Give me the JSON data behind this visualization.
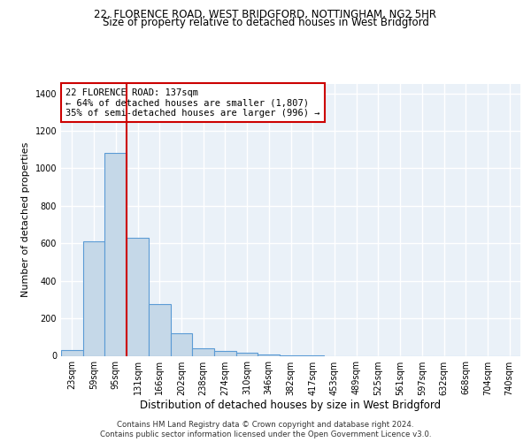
{
  "title_line1": "22, FLORENCE ROAD, WEST BRIDGFORD, NOTTINGHAM, NG2 5HR",
  "title_line2": "Size of property relative to detached houses in West Bridgford",
  "xlabel": "Distribution of detached houses by size in West Bridgford",
  "ylabel": "Number of detached properties",
  "categories": [
    "23sqm",
    "59sqm",
    "95sqm",
    "131sqm",
    "166sqm",
    "202sqm",
    "238sqm",
    "274sqm",
    "310sqm",
    "346sqm",
    "382sqm",
    "417sqm",
    "453sqm",
    "489sqm",
    "525sqm",
    "561sqm",
    "597sqm",
    "632sqm",
    "668sqm",
    "704sqm",
    "740sqm"
  ],
  "values": [
    30,
    610,
    1080,
    630,
    275,
    120,
    40,
    25,
    15,
    5,
    3,
    1,
    0,
    0,
    0,
    0,
    0,
    0,
    0,
    0,
    0
  ],
  "bar_color": "#c5d8e8",
  "bar_edge_color": "#5b9bd5",
  "vline_x_index": 2.5,
  "vline_color": "#cc0000",
  "annotation_text": "22 FLORENCE ROAD: 137sqm\n← 64% of detached houses are smaller (1,807)\n35% of semi-detached houses are larger (996) →",
  "annotation_box_color": "white",
  "annotation_box_edge": "#cc0000",
  "ylim": [
    0,
    1450
  ],
  "yticks": [
    0,
    200,
    400,
    600,
    800,
    1000,
    1200,
    1400
  ],
  "footer_line1": "Contains HM Land Registry data © Crown copyright and database right 2024.",
  "footer_line2": "Contains public sector information licensed under the Open Government Licence v3.0.",
  "plot_bg_color": "#eaf1f8",
  "grid_color": "white",
  "title_fontsize": 8.5,
  "subtitle_fontsize": 8.5,
  "tick_fontsize": 7,
  "ylabel_fontsize": 8,
  "xlabel_fontsize": 8.5,
  "annotation_fontsize": 7.5,
  "footer_fontsize": 6.2
}
